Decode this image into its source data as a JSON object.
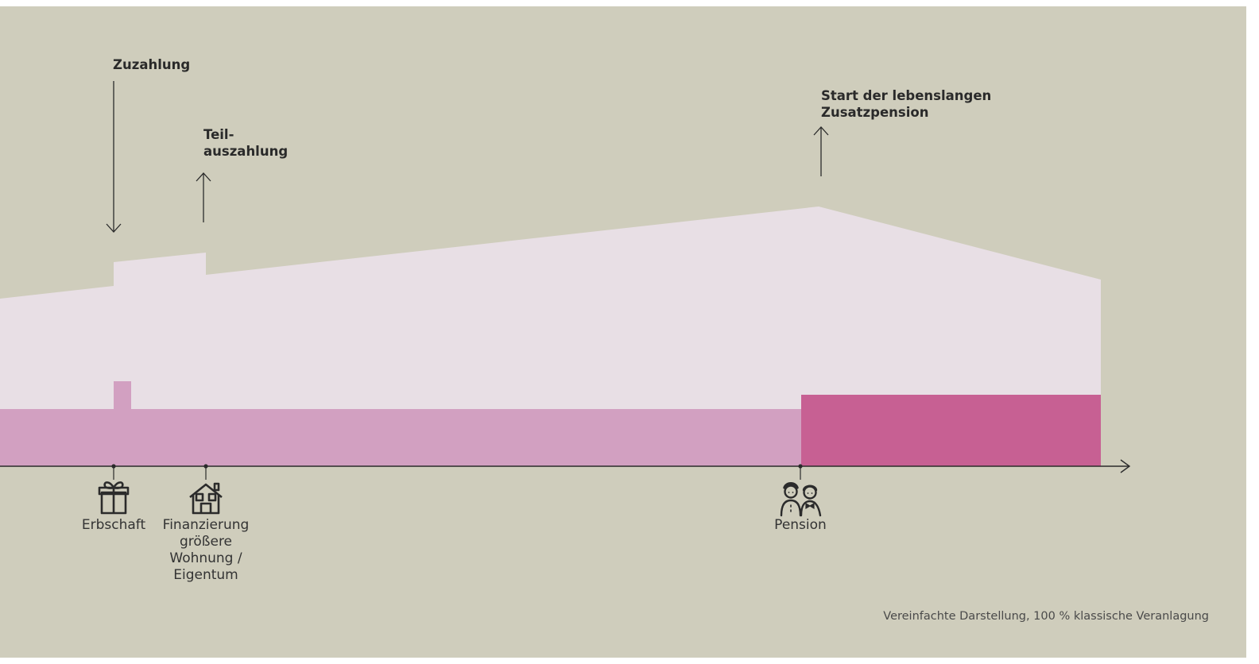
{
  "annotations": {
    "top_up": "Zuzahlung",
    "partial_payout_line1": "Teil-",
    "partial_payout_line2": "auszahlung",
    "pension_start_line1": "Start der lebenslangen",
    "pension_start_line2": "Zusatzpension"
  },
  "milestones": [
    {
      "label_lines": [
        "Erbschaft"
      ],
      "icon": "gift-icon"
    },
    {
      "label_lines": [
        "Finanzierung",
        "größere",
        "Wohnung /",
        "Eigentum"
      ],
      "icon": "house-icon"
    },
    {
      "label_lines": [
        "Pension"
      ],
      "icon": "couple-icon"
    }
  ],
  "footnote": "Vereinfachte Darstellung, 100 % klassische Veranlagung",
  "colors": {
    "background": "#cfcdbc",
    "savings_area": "#e8dfe5",
    "base_area": "#d2a0c1",
    "pension_area": "#c76093",
    "line": "#2b2b2b"
  }
}
